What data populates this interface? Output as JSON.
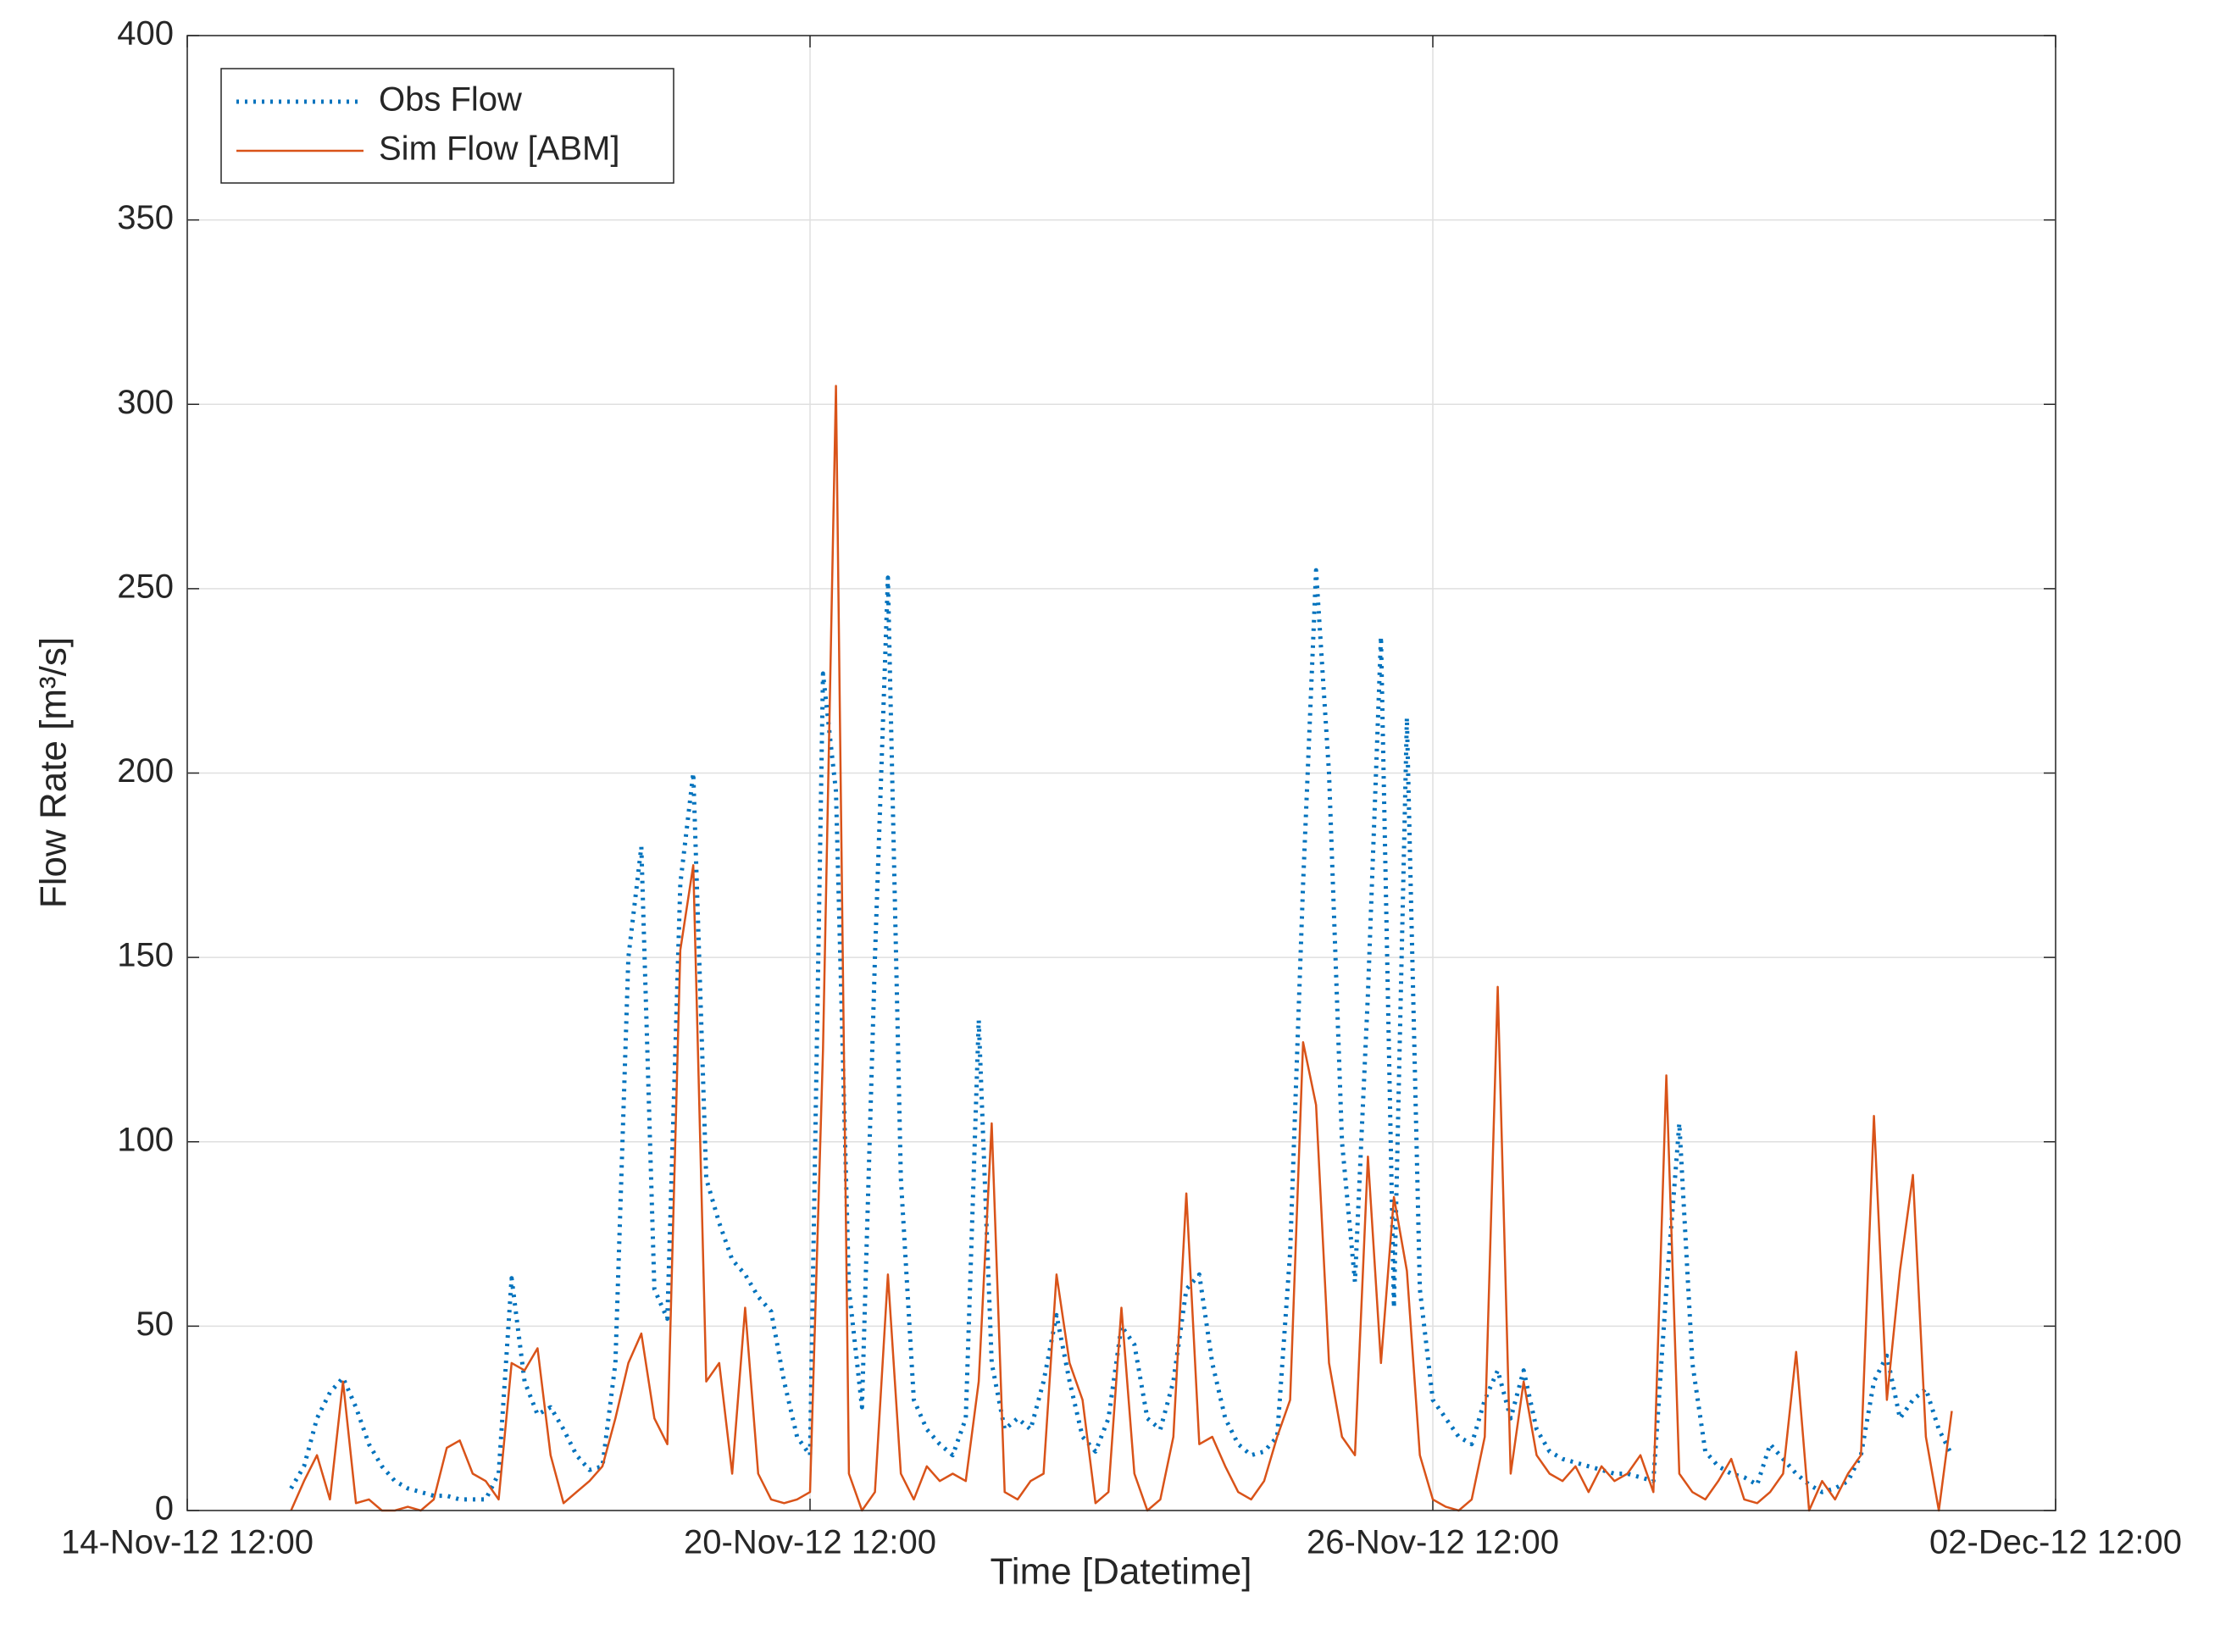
{
  "chart_data": {
    "type": "line",
    "xlabel": "Time [Datetime]",
    "ylabel": "Flow Rate [m³/s]",
    "x": [
      "15-Nov-12 12:00",
      "15-Nov-12 15:00",
      "15-Nov-12 18:00",
      "15-Nov-12 21:00",
      "16-Nov-12 00:00",
      "16-Nov-12 03:00",
      "16-Nov-12 06:00",
      "16-Nov-12 09:00",
      "16-Nov-12 12:00",
      "16-Nov-12 15:00",
      "16-Nov-12 18:00",
      "16-Nov-12 21:00",
      "17-Nov-12 00:00",
      "17-Nov-12 03:00",
      "17-Nov-12 06:00",
      "17-Nov-12 09:00",
      "17-Nov-12 12:00",
      "17-Nov-12 15:00",
      "17-Nov-12 18:00",
      "17-Nov-12 21:00",
      "18-Nov-12 00:00",
      "18-Nov-12 03:00",
      "18-Nov-12 06:00",
      "18-Nov-12 09:00",
      "18-Nov-12 12:00",
      "18-Nov-12 15:00",
      "18-Nov-12 18:00",
      "18-Nov-12 21:00",
      "19-Nov-12 00:00",
      "19-Nov-12 03:00",
      "19-Nov-12 06:00",
      "19-Nov-12 09:00",
      "19-Nov-12 12:00",
      "19-Nov-12 15:00",
      "19-Nov-12 18:00",
      "19-Nov-12 21:00",
      "20-Nov-12 00:00",
      "20-Nov-12 03:00",
      "20-Nov-12 06:00",
      "20-Nov-12 09:00",
      "20-Nov-12 12:00",
      "20-Nov-12 15:00",
      "20-Nov-12 18:00",
      "20-Nov-12 21:00",
      "21-Nov-12 00:00",
      "21-Nov-12 03:00",
      "21-Nov-12 06:00",
      "21-Nov-12 09:00",
      "21-Nov-12 12:00",
      "21-Nov-12 15:00",
      "21-Nov-12 18:00",
      "21-Nov-12 21:00",
      "22-Nov-12 00:00",
      "22-Nov-12 03:00",
      "22-Nov-12 06:00",
      "22-Nov-12 09:00",
      "22-Nov-12 12:00",
      "22-Nov-12 15:00",
      "22-Nov-12 18:00",
      "22-Nov-12 21:00",
      "23-Nov-12 00:00",
      "23-Nov-12 03:00",
      "23-Nov-12 06:00",
      "23-Nov-12 09:00",
      "23-Nov-12 12:00",
      "23-Nov-12 15:00",
      "23-Nov-12 18:00",
      "23-Nov-12 21:00",
      "24-Nov-12 00:00",
      "24-Nov-12 03:00",
      "24-Nov-12 06:00",
      "24-Nov-12 09:00",
      "24-Nov-12 12:00",
      "24-Nov-12 15:00",
      "24-Nov-12 18:00",
      "24-Nov-12 21:00",
      "25-Nov-12 00:00",
      "25-Nov-12 03:00",
      "25-Nov-12 06:00",
      "25-Nov-12 09:00",
      "25-Nov-12 12:00",
      "25-Nov-12 15:00",
      "25-Nov-12 18:00",
      "25-Nov-12 21:00",
      "26-Nov-12 00:00",
      "26-Nov-12 03:00",
      "26-Nov-12 06:00",
      "26-Nov-12 09:00",
      "26-Nov-12 12:00",
      "26-Nov-12 15:00",
      "26-Nov-12 18:00",
      "26-Nov-12 21:00",
      "27-Nov-12 00:00",
      "27-Nov-12 03:00",
      "27-Nov-12 06:00",
      "27-Nov-12 09:00",
      "27-Nov-12 12:00",
      "27-Nov-12 15:00",
      "27-Nov-12 18:00",
      "27-Nov-12 21:00",
      "28-Nov-12 00:00",
      "28-Nov-12 03:00",
      "28-Nov-12 06:00",
      "28-Nov-12 09:00",
      "28-Nov-12 12:00",
      "28-Nov-12 15:00",
      "28-Nov-12 18:00",
      "28-Nov-12 21:00",
      "29-Nov-12 00:00",
      "29-Nov-12 03:00",
      "29-Nov-12 06:00",
      "29-Nov-12 09:00",
      "29-Nov-12 12:00",
      "29-Nov-12 15:00",
      "29-Nov-12 18:00",
      "29-Nov-12 21:00",
      "30-Nov-12 00:00",
      "30-Nov-12 03:00",
      "30-Nov-12 06:00",
      "30-Nov-12 09:00",
      "30-Nov-12 12:00",
      "30-Nov-12 15:00",
      "30-Nov-12 18:00",
      "30-Nov-12 21:00",
      "01-Dec-12 00:00",
      "01-Dec-12 03:00",
      "01-Dec-12 06:00",
      "01-Dec-12 09:00",
      "01-Dec-12 12:00"
    ],
    "series": [
      {
        "name": "Obs Flow",
        "color": "#0072bd",
        "style": "dotted",
        "values": [
          6,
          12,
          25,
          32,
          36,
          28,
          18,
          12,
          8,
          6,
          5,
          4,
          4,
          3,
          3,
          3,
          10,
          63,
          35,
          26,
          28,
          22,
          15,
          11,
          12,
          40,
          150,
          180,
          60,
          52,
          170,
          200,
          90,
          78,
          68,
          64,
          58,
          54,
          35,
          20,
          15,
          227,
          195,
          60,
          28,
          150,
          253,
          90,
          30,
          22,
          18,
          15,
          25,
          133,
          40,
          22,
          25,
          22,
          35,
          53,
          35,
          20,
          16,
          25,
          50,
          45,
          25,
          22,
          35,
          60,
          64,
          40,
          25,
          18,
          15,
          16,
          20,
          70,
          170,
          255,
          200,
          100,
          62,
          140,
          237,
          55,
          215,
          60,
          30,
          25,
          20,
          18,
          30,
          38,
          25,
          38,
          22,
          16,
          14,
          13,
          12,
          11,
          10,
          10,
          9,
          8,
          60,
          105,
          40,
          16,
          12,
          10,
          9,
          7,
          18,
          14,
          10,
          7,
          5,
          6,
          8,
          15,
          35,
          42,
          25,
          30,
          33,
          22,
          15
        ]
      },
      {
        "name": "Sim Flow [ABM]",
        "color": "#d95319",
        "style": "solid",
        "values": [
          0,
          8,
          15,
          3,
          35,
          2,
          3,
          0,
          0,
          1,
          0,
          3,
          17,
          19,
          10,
          8,
          3,
          40,
          38,
          44,
          15,
          2,
          5,
          8,
          12,
          25,
          40,
          48,
          25,
          18,
          152,
          175,
          35,
          40,
          10,
          55,
          10,
          3,
          2,
          3,
          5,
          125,
          305,
          10,
          0,
          5,
          64,
          10,
          3,
          12,
          8,
          10,
          8,
          35,
          105,
          5,
          3,
          8,
          10,
          64,
          40,
          30,
          2,
          5,
          55,
          10,
          0,
          3,
          20,
          86,
          18,
          20,
          12,
          5,
          3,
          8,
          20,
          30,
          127,
          110,
          40,
          20,
          15,
          96,
          40,
          85,
          65,
          15,
          3,
          1,
          0,
          3,
          20,
          142,
          10,
          35,
          15,
          10,
          8,
          12,
          5,
          12,
          8,
          10,
          15,
          5,
          118,
          10,
          5,
          3,
          8,
          14,
          3,
          2,
          5,
          10,
          43,
          0,
          8,
          3,
          10,
          15,
          107,
          30,
          65,
          91,
          20,
          0,
          27
        ]
      }
    ],
    "xlim": [
      "14-Nov-12 12:00",
      "02-Dec-12 12:00"
    ],
    "xticks": [
      "14-Nov-12 12:00",
      "20-Nov-12 12:00",
      "26-Nov-12 12:00",
      "02-Dec-12 12:00"
    ],
    "ylim": [
      0,
      400
    ],
    "yticks": [
      0,
      50,
      100,
      150,
      200,
      250,
      300,
      350,
      400
    ],
    "grid": true,
    "legend": "northwest"
  }
}
